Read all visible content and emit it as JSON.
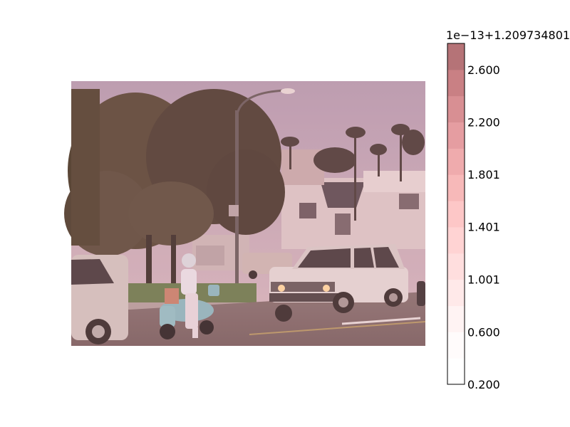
{
  "chart_data": {
    "type": "image",
    "image_description": "photo of a street scene",
    "colormap": {
      "name": "red-tinted sequential",
      "ticks": [
        "0.200",
        "0.600",
        "1.001",
        "1.401",
        "1.801",
        "2.200",
        "2.600"
      ],
      "tick_values": [
        0.2,
        0.6,
        1.001,
        1.401,
        1.801,
        2.2,
        2.6
      ],
      "range": [
        0.2,
        2.8
      ],
      "offset_text": "1e−13+1.209734801",
      "levels": 13,
      "colors": [
        "#ffffff",
        "#fffbfb",
        "#fff3f3",
        "#ffe9e9",
        "#ffdede",
        "#ffd3d3",
        "#fdc7c7",
        "#f7b9b9",
        "#efabad",
        "#e59da1",
        "#d88f93",
        "#c98084",
        "#b57377"
      ]
    }
  }
}
